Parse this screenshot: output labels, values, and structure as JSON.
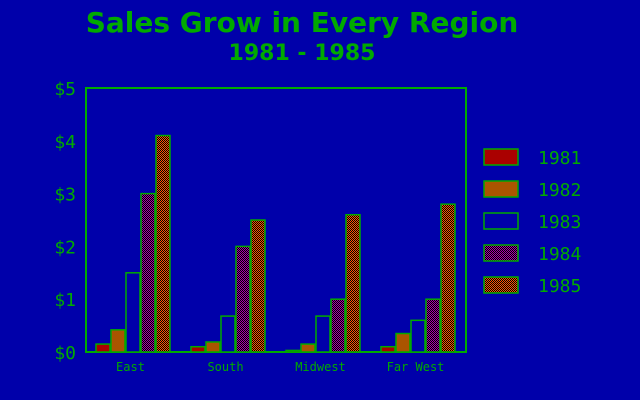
{
  "chart_data": {
    "type": "bar",
    "title": "Sales Grow in Every Region",
    "subtitle": "1981 - 1985",
    "xlabel": "",
    "ylabel": "",
    "categories": [
      "East",
      "South",
      "Midwest",
      "Far West"
    ],
    "series": [
      {
        "name": "1981",
        "values": [
          0.15,
          0.1,
          0.03,
          0.1
        ]
      },
      {
        "name": "1982",
        "values": [
          0.42,
          0.19,
          0.15,
          0.35
        ]
      },
      {
        "name": "1983",
        "values": [
          1.5,
          0.68,
          0.68,
          0.6
        ]
      },
      {
        "name": "1984",
        "values": [
          3.0,
          2.0,
          1.0,
          1.0
        ]
      },
      {
        "name": "1985",
        "values": [
          4.1,
          2.5,
          2.6,
          2.8
        ]
      }
    ],
    "ylim": [
      0,
      5
    ],
    "yticks": [
      0,
      1,
      2,
      3,
      4,
      5
    ],
    "ytick_labels": [
      "$0",
      "$1",
      "$2",
      "$3",
      "$4",
      "$5"
    ],
    "grid": false,
    "legend_position": "right"
  },
  "colors": {
    "background": "#0000aa",
    "text": "#00aa00",
    "axis": "#00aa00",
    "series": [
      {
        "fill": "#aa0000",
        "stroke": "#00aa00",
        "pattern": "solid"
      },
      {
        "fill": "#aa5500",
        "stroke": "#00aa00",
        "pattern": "solid"
      },
      {
        "fill": "#0000aa",
        "stroke": "#00aa00",
        "pattern": "hollow"
      },
      {
        "fill": "#aa00aa",
        "stroke": "#00aa00",
        "pattern": "checker"
      },
      {
        "fill": "#ff5500",
        "stroke": "#00aa00",
        "pattern": "checker"
      }
    ]
  }
}
